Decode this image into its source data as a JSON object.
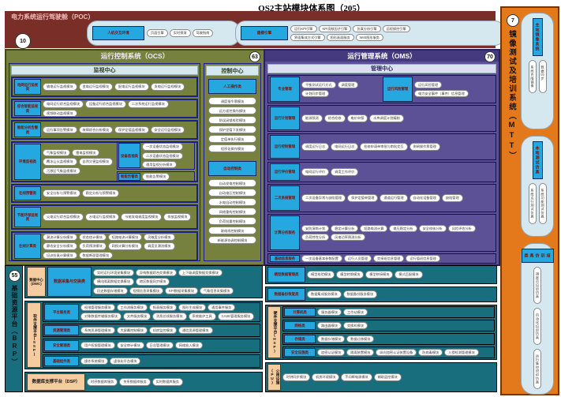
{
  "page_title": "OS2主站模块体系图（205）",
  "poc": {
    "title": "电力系统运行驾驶舱（POC）",
    "badge": "10",
    "hmi": {
      "label": "人机交互环境",
      "pills": [
        "页面引擎",
        "实时预演",
        "驾驶指南"
      ]
    },
    "engine": {
      "label": "建模引擎",
      "row1": [
        "运行KPI引擎",
        "KPI贡献因子引擎",
        "仿真分析引擎",
        "远程操控引擎"
      ],
      "row2": [
        "界面集成方式引擎",
        "图形画面服务",
        "Web图形服务"
      ]
    }
  },
  "ocs": {
    "title": "运行控制系统（OCS）",
    "badge": "63",
    "monitor": {
      "title": "监视中心",
      "rows": [
        {
          "label": "电网运行监视类",
          "pills": [
            "输电运行监视模块",
            "变电运行监视模块",
            "配电运行监视模块",
            "发电运行监视模块"
          ]
        },
        {
          "label": "综合智能监视类",
          "pills": [
            "电网运行综合监视模块",
            "设备运行综合监视模块",
            "二次系统运行监视模块",
            "视频联动监视模块"
          ]
        },
        {
          "label": "智能分析告警类",
          "pills": [
            "运行事项告警模块",
            "故障综合分析模块",
            "保护定值监视模块",
            "安全运行监视模块"
          ]
        },
        {
          "label": "环境监视类",
          "pills": [
            "气象监视模块",
            "雷电监视模块",
            "覆冰山火监视模块",
            "自然灾害监视模块",
            "污秽区气象监视模块"
          ]
        },
        {
          "label": "在线预警类",
          "pills": [
            "安全分析与预警模块",
            "稳定分析与预警模块"
          ]
        },
        {
          "label": "节能环保监视类",
          "pills": [
            "火电运行综合监视模块",
            "水电运行监视模块",
            "节能发电调度监视模块",
            "排放监视模块"
          ]
        },
        {
          "label": "在线计算类",
          "pills": [
            "潮流计算分析模块",
            "状态估计模块",
            "短路电流计算模块",
            "灵敏度分析模块",
            "静态安全分析模块",
            "负荷预测模块",
            "网损计算分析模块",
            "调度员潮流模块",
            "培训仿真计算模块",
            "数据断面管理模块"
          ]
        }
      ],
      "device": {
        "label": "设备监视类",
        "pills": [
          "一次设备状态监视模块",
          "二次设备状态监视模块",
          "通用监视分析模块"
        ]
      },
      "alarm": {
        "label": "智能告警类",
        "pills": [
          "智能告警模块"
        ]
      }
    },
    "control": {
      "title": "控制中心",
      "manual": {
        "label": "人工操作类",
        "pills": [
          "调度指令票模块",
          "远方遥控操作模块",
          "防误闭锁校验模块",
          "保护定值下发模块",
          "定值单执行模块",
          "程序化操作模块"
        ]
      },
      "auto": {
        "label": "自动控制类",
        "pills": [
          "自动发电控制模块",
          "自动电压控制模块",
          "水电自动控制模块",
          "网络重构控制模块",
          "负荷批量控制模块",
          "联络线控制模块",
          "新能源协调控制模块"
        ]
      }
    }
  },
  "oms": {
    "title": "运行管理系统（OMS）",
    "badge": "70",
    "center": "管理中心",
    "row1a": {
      "label": "专业管理",
      "pills": [
        "平衡测试运行方式",
        "调度管理",
        "计划同步管理"
      ]
    },
    "row1b": {
      "label": "运行风险管理",
      "pills": [
        "运行风险管理",
        "电力安全事件（事件）信息管理"
      ]
    },
    "rows": [
      {
        "label": "运行计划管理",
        "pills": [
          "能源预测",
          "综合检修",
          "电价申报",
          "水库调度计划编制"
        ]
      },
      {
        "label": "运行控制管理",
        "pills": [
          "调度运行日志",
          "电网运行日志",
          "检修申请单审批与审批交互",
          "倒闸操作票管理"
        ]
      },
      {
        "label": "运行评价管理",
        "pills": [
          "电网运行评价",
          "调度工作评价"
        ]
      },
      {
        "label": "二次系统管理",
        "pills": [
          "二次设备异常与缺陷管理",
          "保护定值单管理",
          "通道运行管理",
          "自动化设备管理",
          "缺陷管理"
        ]
      },
      {
        "label": "计算分析服务",
        "pills": [
          "安防演练计划",
          "稳定计算分析",
          "短路电流计算",
          "电压稳定分析",
          "安全校核分析",
          "风险评估分析",
          "负荷特性分析",
          "风电功率预测分析"
        ]
      },
      {
        "label": "基础信息服务",
        "pills": [
          "一次设备基本参数配置",
          "运行人员管理",
          "交接班信息管理",
          "运行值班信息管理"
        ]
      }
    ]
  },
  "mtt": {
    "title": "镜像测试及培训系统（MTT）",
    "badge": "7",
    "groups": [
      {
        "label": "主站镜像系统",
        "pills": [
          "系统克隆镜像",
          "数据同步"
        ]
      },
      {
        "label": "本地测试仿真",
        "pills": [
          "系统运行测试仿真",
          "系统功能测试仿真"
        ]
      },
      {
        "label": "培训仿真类",
        "pills": [
          "调度员培训仿真",
          "自动化培训仿真",
          "运行集控培训仿真"
        ]
      }
    ]
  },
  "brp": {
    "title": "基础资源平台（BRP）",
    "badge": "55",
    "dwc": {
      "label": "数据中心(DWC)",
      "category": "数据采集与交换类",
      "row1": [
        "实时运行环境采集模块",
        "异构数据综合交换模块",
        "上下级调度数据交换模块",
        "横向隔离数据交换模块",
        "跨区数据同步模块"
      ],
      "row2": [
        "历史数据存储模块",
        "视频信息采集模块",
        "KPI数据采集模块",
        "气象信息采集模块"
      ]
    },
    "model_row": {
      "label": "模型数据管理类",
      "pills": [
        "模型校验模块",
        "模型转换模块",
        "模型拼接模块",
        "模式匹配模块"
      ]
    },
    "backup_row": {
      "label": "数据备份恢复类",
      "pills": [
        "数据集成服务模块",
        "数据备份服务模块"
      ]
    },
    "ssp": {
      "label": "软件支撑平台(SSP)",
      "rows": [
        {
          "label": "平台服务类",
          "pills": [
            "权限管理服务模块",
            "工作流服务模块",
            "报表服务模块",
            "图形生成模块",
            "通用事件服务",
            "对象数据传输服务模块",
            "文件服务模块",
            "消息总线服务模块",
            "系统维护工具",
            "CASE管理服务模块"
          ]
        },
        {
          "label": "资源管理类",
          "pills": [
            "系统资源管理模块",
            "大屏幕控制模块",
            "机房监控模块",
            "通信资源管理模块"
          ]
        },
        {
          "label": "安全管理类",
          "pills": [
            "用户权限管理模块",
            "安全审计模块",
            "日志管理模块",
            "网络准入模块"
          ]
        },
        {
          "label": "基础组件类",
          "pills": [
            "操作系统模块",
            "虚拟化平台模块"
          ]
        }
      ]
    },
    "dsp": {
      "label": "数据库支撑平台（DSP）",
      "pills": [
        "时序数据库服务",
        "关系数据库服务",
        "实时数据库服务"
      ]
    },
    "hsp": {
      "label": "硬件支撑平台(HSP)",
      "rows": [
        {
          "label": "计算机类",
          "pills": [
            "服务器模块",
            "工作站模块"
          ]
        },
        {
          "label": "网络类",
          "pills": [
            "路由器模块",
            "交换机模块"
          ]
        },
        {
          "label": "存储类",
          "pills": [
            "数据存储模块",
            "数据迁移模块"
          ]
        },
        {
          "label": "安全设施类",
          "pills": [
            "加密认证模块",
            "隔离装置模块",
            "纵向加密认证装置设备",
            "防病毒模块",
            "入侵检测管理模块"
          ]
        }
      ]
    },
    "pu": {
      "label": "公用设施(PU)",
      "pills": [
        "时钟同步模块",
        "机房环境模块",
        "不间断电源模块",
        "辅助监控模块"
      ]
    }
  }
}
